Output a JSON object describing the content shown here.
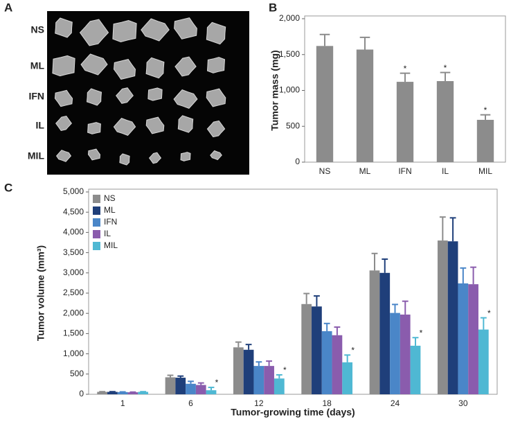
{
  "panel_a": {
    "label": "A",
    "rows": [
      "NS",
      "ML",
      "IFN",
      "IL",
      "MIL"
    ]
  },
  "chart_data": [
    {
      "type": "bar",
      "label": "B",
      "y_label": "Tumor mass (mg)",
      "color": "#8c8c8c",
      "categories": [
        "NS",
        "ML",
        "IFN",
        "IL",
        "MIL"
      ],
      "values": [
        1620,
        1570,
        1120,
        1130,
        590
      ],
      "errors": [
        160,
        170,
        120,
        120,
        70
      ],
      "significant": [
        false,
        false,
        true,
        true,
        true
      ],
      "marker": "*",
      "ylim": [
        0,
        2000
      ],
      "yticks": [
        0,
        500,
        {
          "value": 1000,
          "label": "1,000"
        },
        {
          "value": 1500,
          "label": "1,500"
        },
        {
          "value": 2000,
          "label": "2,000"
        }
      ]
    },
    {
      "type": "grouped-bar",
      "label": "C",
      "x_label": "Tumor-growing time (days)",
      "y_label": "Tumor volume (mm³)",
      "marker": "*",
      "categories": [
        "1",
        "6",
        "12",
        "18",
        "24",
        "30"
      ],
      "series": [
        {
          "name": "NS",
          "color": "#8c8c8c",
          "values": [
            60,
            420,
            1160,
            2230,
            3060,
            3800
          ],
          "errors": [
            5,
            50,
            130,
            260,
            420,
            580
          ],
          "significant": [
            false,
            false,
            false,
            false,
            false,
            false
          ]
        },
        {
          "name": "ML",
          "color": "#1f3f7a",
          "values": [
            60,
            410,
            1100,
            2170,
            3000,
            3780
          ],
          "errors": [
            5,
            40,
            130,
            260,
            340,
            580
          ],
          "significant": [
            false,
            false,
            false,
            false,
            false,
            false
          ]
        },
        {
          "name": "IFN",
          "color": "#4a86c8",
          "values": [
            55,
            260,
            700,
            1560,
            2010,
            2740
          ],
          "errors": [
            5,
            60,
            100,
            190,
            210,
            380
          ],
          "significant": [
            false,
            false,
            false,
            false,
            false,
            false
          ]
        },
        {
          "name": "IL",
          "color": "#8a5cad",
          "values": [
            50,
            230,
            700,
            1460,
            1970,
            2720
          ],
          "errors": [
            5,
            50,
            120,
            200,
            330,
            420
          ],
          "significant": [
            false,
            false,
            false,
            false,
            false,
            false
          ]
        },
        {
          "name": "MIL",
          "color": "#4fb8d3",
          "values": [
            60,
            100,
            390,
            790,
            1200,
            1600
          ],
          "errors": [
            5,
            70,
            90,
            180,
            200,
            290
          ],
          "significant": [
            false,
            true,
            true,
            true,
            true,
            true
          ]
        }
      ],
      "ylim": [
        0,
        5000
      ],
      "yticks": [
        0,
        500,
        {
          "value": 1000,
          "label": "1,000"
        },
        {
          "value": 1500,
          "label": "1,500"
        },
        {
          "value": 2000,
          "label": "2,000"
        },
        {
          "value": 2500,
          "label": "2,500"
        },
        {
          "value": 3000,
          "label": "3,000"
        },
        {
          "value": 3500,
          "label": "3,500"
        },
        {
          "value": 4000,
          "label": "4,000"
        },
        {
          "value": 4500,
          "label": "4,500"
        },
        {
          "value": 5000,
          "label": "5,000"
        }
      ]
    }
  ]
}
